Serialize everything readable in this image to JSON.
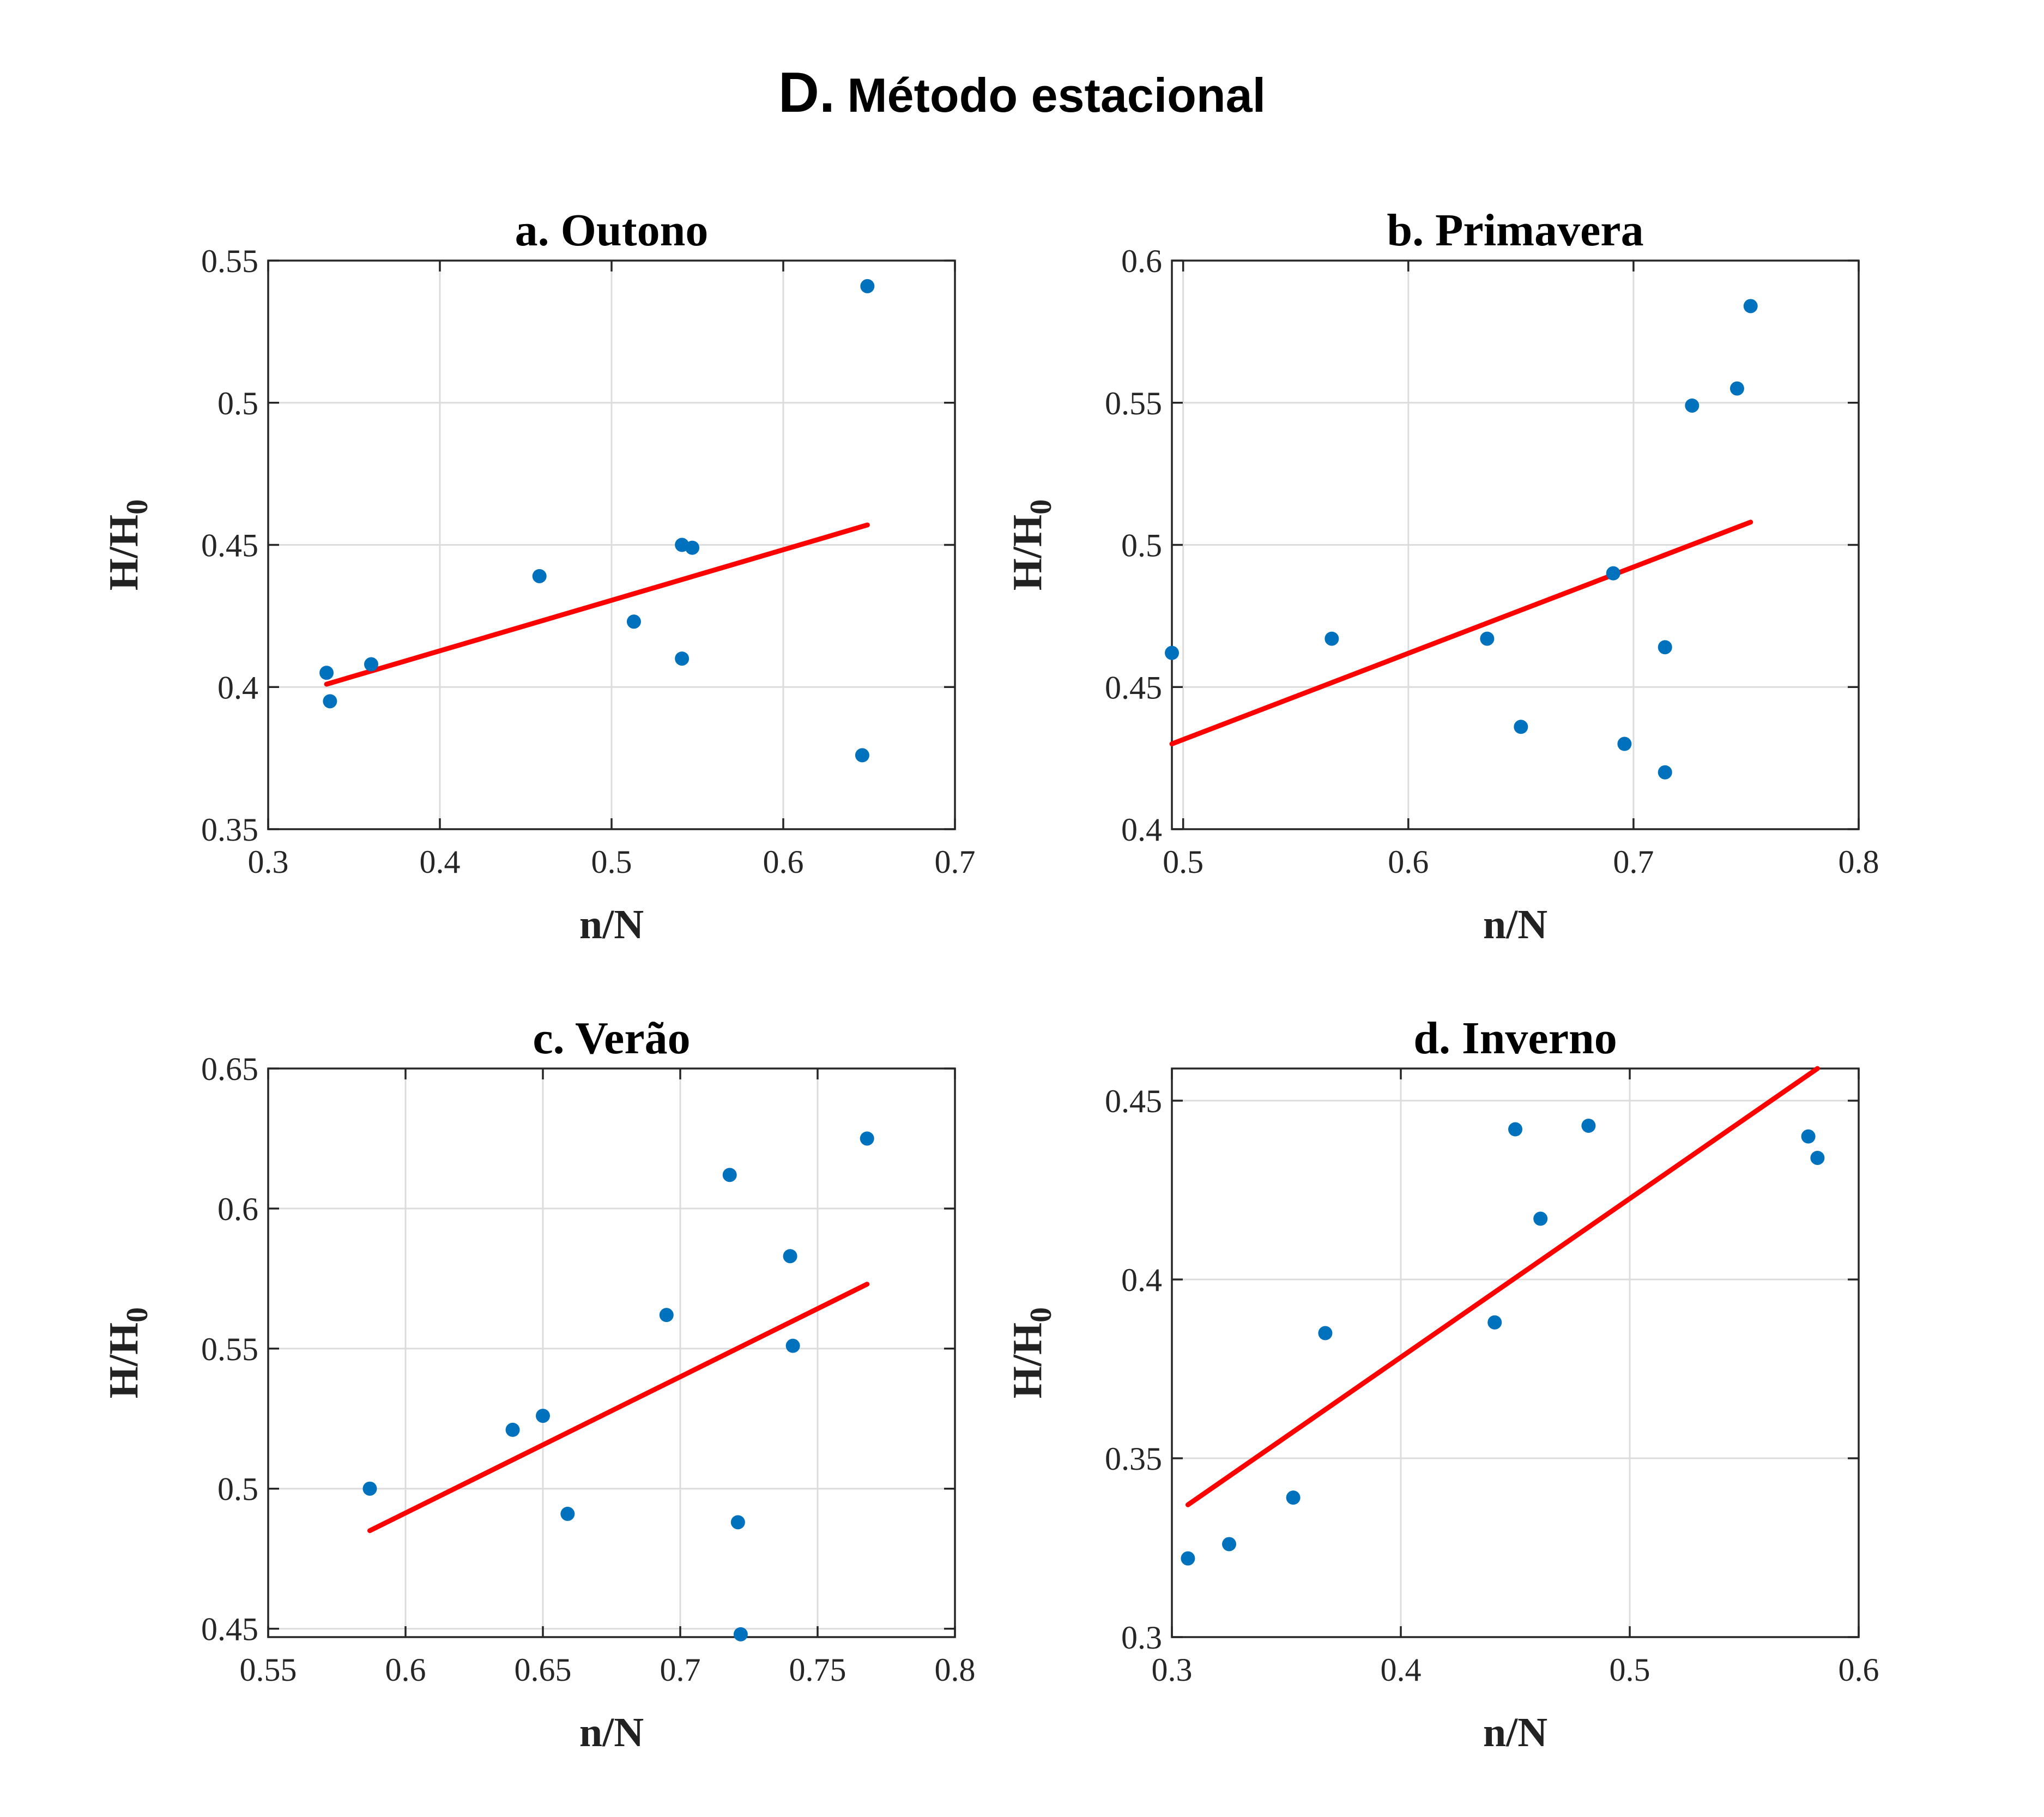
{
  "figure": {
    "title_letter": "D.",
    "title_text": "Método estacional"
  },
  "colors": {
    "points": "#0072BD",
    "fit_line": "#FF0000",
    "grid": "#DCDCDC",
    "axes": "#262626"
  },
  "chart_data": [
    {
      "type": "scatter",
      "title": "a. Outono",
      "xlabel": "n/N",
      "ylabel": "H/H",
      "ylabel_sub": "0",
      "xlim": [
        0.3,
        0.7
      ],
      "ylim": [
        0.35,
        0.55
      ],
      "xticks": [
        0.3,
        0.4,
        0.5,
        0.6,
        0.7
      ],
      "xtick_labels": [
        "0.3",
        "0.4",
        "0.5",
        "0.6",
        "0.7"
      ],
      "yticks": [
        0.35,
        0.4,
        0.45,
        0.5,
        0.55
      ],
      "ytick_labels": [
        "0.35",
        "0.4",
        "0.45",
        "0.5",
        "0.55"
      ],
      "grid": true,
      "points": [
        [
          0.334,
          0.405
        ],
        [
          0.336,
          0.395
        ],
        [
          0.36,
          0.408
        ],
        [
          0.458,
          0.439
        ],
        [
          0.513,
          0.423
        ],
        [
          0.541,
          0.45
        ],
        [
          0.547,
          0.449
        ],
        [
          0.541,
          0.41
        ],
        [
          0.646,
          0.376
        ],
        [
          0.649,
          0.541
        ]
      ],
      "fit_line": [
        [
          0.334,
          0.401
        ],
        [
          0.649,
          0.457
        ]
      ]
    },
    {
      "type": "scatter",
      "title": "b. Primavera",
      "xlabel": "n/N",
      "ylabel": "H/H",
      "ylabel_sub": "0",
      "xlim": [
        0.495,
        0.8
      ],
      "ylim": [
        0.4,
        0.6
      ],
      "xticks": [
        0.5,
        0.6,
        0.7,
        0.8
      ],
      "xtick_labels": [
        "0.5",
        "0.6",
        "0.7",
        "0.8"
      ],
      "yticks": [
        0.4,
        0.45,
        0.5,
        0.55,
        0.6
      ],
      "ytick_labels": [
        "0.4",
        "0.45",
        "0.5",
        "0.55",
        "0.6"
      ],
      "grid": true,
      "points": [
        [
          0.495,
          0.462
        ],
        [
          0.566,
          0.467
        ],
        [
          0.635,
          0.467
        ],
        [
          0.65,
          0.436
        ],
        [
          0.691,
          0.49
        ],
        [
          0.696,
          0.43
        ],
        [
          0.714,
          0.464
        ],
        [
          0.714,
          0.42
        ],
        [
          0.726,
          0.549
        ],
        [
          0.746,
          0.555
        ],
        [
          0.752,
          0.584
        ]
      ],
      "fit_line": [
        [
          0.495,
          0.43
        ],
        [
          0.752,
          0.508
        ]
      ]
    },
    {
      "type": "scatter",
      "title": "c. Verão",
      "xlabel": "n/N",
      "ylabel": "H/H",
      "ylabel_sub": "0",
      "xlim": [
        0.55,
        0.8
      ],
      "ylim": [
        0.447,
        0.65
      ],
      "xticks": [
        0.55,
        0.6,
        0.65,
        0.7,
        0.75,
        0.8
      ],
      "xtick_labels": [
        "0.55",
        "0.6",
        "0.65",
        "0.7",
        "0.75",
        "0.8"
      ],
      "yticks": [
        0.45,
        0.5,
        0.55,
        0.6,
        0.65
      ],
      "ytick_labels": [
        "0.45",
        "0.5",
        "0.55",
        "0.6",
        "0.65"
      ],
      "grid": true,
      "points": [
        [
          0.587,
          0.5
        ],
        [
          0.639,
          0.521
        ],
        [
          0.65,
          0.526
        ],
        [
          0.659,
          0.491
        ],
        [
          0.695,
          0.562
        ],
        [
          0.718,
          0.612
        ],
        [
          0.721,
          0.488
        ],
        [
          0.722,
          0.448
        ],
        [
          0.74,
          0.583
        ],
        [
          0.741,
          0.551
        ],
        [
          0.768,
          0.625
        ]
      ],
      "fit_line": [
        [
          0.587,
          0.485
        ],
        [
          0.768,
          0.573
        ]
      ]
    },
    {
      "type": "scatter",
      "title": "d. Inverno",
      "xlabel": "n/N",
      "ylabel": "H/H",
      "ylabel_sub": "0",
      "xlim": [
        0.3,
        0.6
      ],
      "ylim": [
        0.3,
        0.459
      ],
      "xticks": [
        0.3,
        0.4,
        0.5,
        0.6
      ],
      "xtick_labels": [
        "0.3",
        "0.4",
        "0.5",
        "0.6"
      ],
      "yticks": [
        0.3,
        0.35,
        0.4,
        0.45
      ],
      "ytick_labels": [
        "0.3",
        "0.35",
        "0.4",
        "0.45"
      ],
      "grid": true,
      "points": [
        [
          0.307,
          0.322
        ],
        [
          0.325,
          0.326
        ],
        [
          0.353,
          0.339
        ],
        [
          0.367,
          0.385
        ],
        [
          0.441,
          0.388
        ],
        [
          0.45,
          0.442
        ],
        [
          0.461,
          0.417
        ],
        [
          0.482,
          0.443
        ],
        [
          0.578,
          0.44
        ],
        [
          0.582,
          0.434
        ]
      ],
      "fit_line": [
        [
          0.307,
          0.337
        ],
        [
          0.582,
          0.459
        ]
      ]
    }
  ]
}
